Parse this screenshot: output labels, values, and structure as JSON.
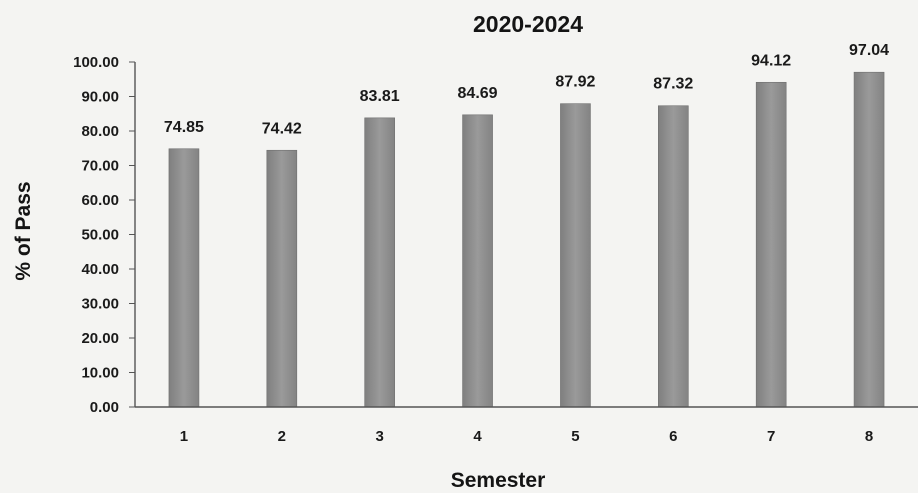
{
  "chart_data": {
    "type": "bar",
    "title": "2020-2024",
    "xlabel": "Semester",
    "ylabel": "% of Pass",
    "categories": [
      "1",
      "2",
      "3",
      "4",
      "5",
      "6",
      "7",
      "8"
    ],
    "values": [
      74.85,
      74.42,
      83.81,
      84.69,
      87.92,
      87.32,
      94.12,
      97.04
    ],
    "value_labels": [
      "74.85",
      "74.42",
      "83.81",
      "84.69",
      "87.92",
      "87.32",
      "94.12",
      "97.04"
    ],
    "ylim": [
      0,
      100
    ],
    "yticks": [
      "0.00",
      "10.00",
      "20.00",
      "30.00",
      "40.00",
      "50.00",
      "60.00",
      "70.00",
      "80.00",
      "90.00",
      "100.00"
    ],
    "grid": false,
    "legend": "none",
    "bar_color": "#8c8c8c",
    "axis_color": "#555555"
  }
}
